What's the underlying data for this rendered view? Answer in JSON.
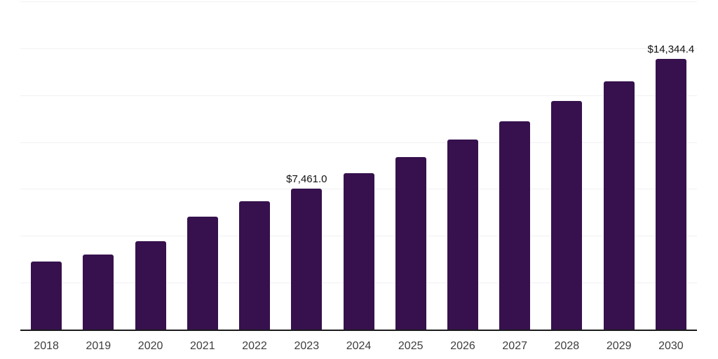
{
  "chart_data": {
    "type": "bar",
    "title": "",
    "xlabel": "",
    "ylabel": "",
    "categories": [
      "2018",
      "2019",
      "2020",
      "2021",
      "2022",
      "2023",
      "2024",
      "2025",
      "2026",
      "2027",
      "2028",
      "2029",
      "2030"
    ],
    "values": [
      3610,
      3985,
      4690,
      5995,
      6815,
      7461.0,
      8300,
      9160,
      10090,
      11055,
      12135,
      13180,
      14344.4
    ],
    "value_labels": [
      "",
      "",
      "",
      "",
      "",
      "$7,461.0",
      "",
      "",
      "",
      "",
      "",
      "",
      "$14,344.4"
    ],
    "ylim": [
      0,
      17400
    ],
    "gridlines": {
      "count": 7,
      "orientation": "horizontal"
    },
    "legend": "none",
    "colors": {
      "bar": "#36114D",
      "axis_line": "#1a1a1a",
      "gridline": "#f1f1f4",
      "value_label": "#111111",
      "tick_label": "#3d3d3d",
      "background": "#ffffff"
    }
  }
}
